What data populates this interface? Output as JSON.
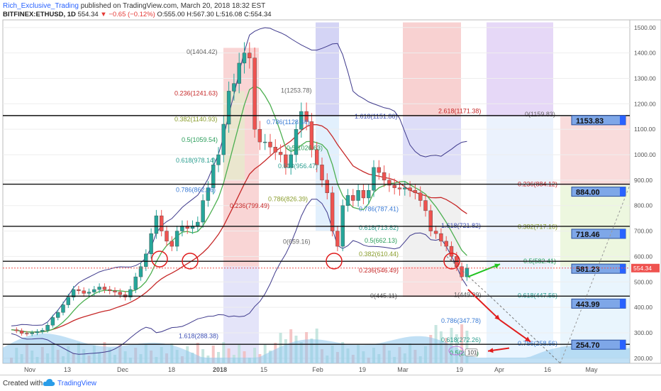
{
  "header": {
    "author": "Rich_Exclusive_Trading",
    "published": "published on TradingView.com, March 20, 2018 18:32 EST",
    "symbol": "BITFINEX:ETHUSD, 1D",
    "price": "554.34",
    "change": "▼ −0.65 (−0.12%)",
    "ohlc": "O:555.00 H:567.30 L:516.08 C:554.34"
  },
  "footer": {
    "created_with": "Created with",
    "brand": "TradingView"
  },
  "colors": {
    "candle_up": "#26a69a",
    "candle_down": "#ef5350",
    "bollinger": "#3f3a8c",
    "ma_green": "#4caf50",
    "ma_red": "#c62828",
    "annotation_arrow_up": "#21c321",
    "annotation_arrow_down": "#e11d1d",
    "level_box": "#2962ff"
  },
  "chart_data": {
    "type": "candlestick",
    "ylim": [
      180,
      1530
    ],
    "y_ticks": [
      "1500.00",
      "1400.00",
      "1300.00",
      "1200.00",
      "1100.00",
      "1000.00",
      "900.00",
      "800.00",
      "700.00",
      "600.00",
      "500.00",
      "400.00",
      "300.00",
      "200.00"
    ],
    "x_ticks": [
      "Nov",
      "13",
      "Dec",
      "18",
      "2018",
      "15",
      "Feb",
      "19",
      "Mar",
      "19",
      "Apr",
      "16",
      "May"
    ],
    "last_price_label": "554.34",
    "close_approx": [
      312,
      308,
      298,
      296,
      300,
      305,
      310,
      330,
      360,
      380,
      410,
      440,
      470,
      465,
      455,
      460,
      470,
      480,
      470,
      465,
      460,
      450,
      440,
      470,
      520,
      560,
      610,
      690,
      760,
      700,
      660,
      640,
      700,
      720,
      710,
      720,
      735,
      820,
      870,
      960,
      1000,
      1120,
      1250,
      1280,
      1360,
      1400,
      1380,
      1100,
      1050,
      1050,
      1030,
      1010,
      1000,
      950,
      1000,
      1100,
      1170,
      1130,
      1020,
      960,
      900,
      850,
      700,
      640,
      800,
      840,
      820,
      860,
      830,
      860,
      950,
      930,
      900,
      880,
      870,
      865,
      870,
      860,
      850,
      820,
      780,
      700,
      690,
      660,
      640,
      600,
      560,
      520,
      554
    ],
    "horizontal_levels": [
      "1153.83",
      "884.00",
      "718.46",
      "581.23",
      "443.99",
      "254.70"
    ],
    "fib_labels_left": [
      "0(1404.42)",
      "0.236(1241.63)",
      "0.382(1140.93)",
      "0.5(1059.54)",
      "0.618(978.14)",
      "0.786(862.26)",
      "1.618(288.38)"
    ],
    "fib_labels_mid": [
      "1(1253.78)",
      "0.786(1128.34)",
      "0.5(1026.63)",
      "0.618(956.47)",
      "0.786(826.39)",
      "0.236(799.49)",
      "0(659.16)"
    ],
    "fib_labels_right": [
      "1.618(1151.86)",
      "2.618(1171.38)",
      "0(1159.83)",
      "0.236(884.12)",
      "0.786(787.41)",
      "0.618(713.82)",
      "1.618(721.82)",
      "0.382(717.16)",
      "0.5(662.13)",
      "0.382(610.44)",
      "0.5(582.41)",
      "0.236(546.49)",
      "0.618(447.56)",
      "0(445.11)",
      "1(449.99)",
      "0.786(347.78)",
      "0.618(272.26)",
      "0.786(258.56)",
      "0.5(221.1)"
    ],
    "volume_badge": "101"
  }
}
